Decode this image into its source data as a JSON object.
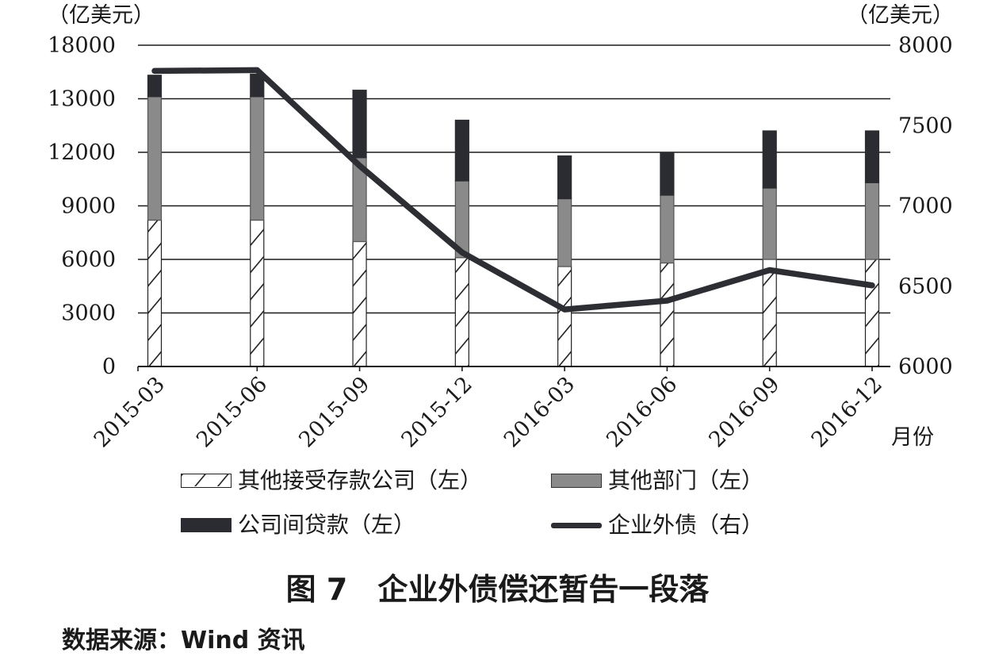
{
  "chart_data": {
    "type": "bar",
    "stacked": true,
    "categories": [
      "2015-03",
      "2015-06",
      "2015-09",
      "2015-12",
      "2016-03",
      "2016-06",
      "2016-09",
      "2016-12"
    ],
    "xlabel": "月份",
    "y_left": {
      "unit": "（亿美元）",
      "ticks": [
        "18000",
        "13000",
        "12000",
        "9000",
        "6000",
        "3000",
        "0"
      ]
    },
    "y_right": {
      "unit": "（亿美元）",
      "ticks": [
        "8000",
        "7500",
        "7000",
        "6500",
        "6000"
      ],
      "ylim": [
        6000,
        8000
      ]
    },
    "series": [
      {
        "name": "其他接受存款公司（左）",
        "axis": "left",
        "pattern": "hatch",
        "values": [
          8200,
          8200,
          7000,
          6100,
          5600,
          5800,
          6000,
          6000
        ]
      },
      {
        "name": "其他部门（左）",
        "axis": "left",
        "color": "#8a8a8a",
        "values": [
          5000,
          5000,
          4700,
          4300,
          3800,
          3800,
          4000,
          4300
        ]
      },
      {
        "name": "公司间贷款（左）",
        "axis": "left",
        "color": "#2b2c31",
        "values": [
          2000,
          2100,
          2100,
          2200,
          2400,
          2400,
          2400,
          2100
        ]
      },
      {
        "name": "企业外债（右）",
        "axis": "right",
        "type": "line",
        "color": "#2d2e33",
        "values": [
          7840,
          7845,
          7250,
          6710,
          6355,
          6410,
          6600,
          6505
        ]
      }
    ],
    "grid": true,
    "legend_position": "bottom"
  },
  "caption": "图 7　企业外债偿还暂告一段落",
  "source": "数据来源：Wind 资讯"
}
